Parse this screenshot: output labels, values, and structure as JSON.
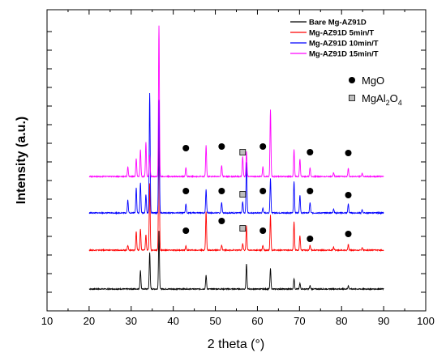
{
  "chart_data": {
    "type": "line",
    "xlabel": "2 theta (°)",
    "ylabel": "Intensity (a.u.)",
    "xlim": [
      10,
      100
    ],
    "x_ticks": [
      10,
      20,
      30,
      40,
      50,
      60,
      70,
      80,
      90,
      100
    ],
    "x_range_data": [
      20,
      90
    ],
    "grid": false,
    "legend_position": "top-right",
    "series": [
      {
        "name": "Bare Mg-AZ91D",
        "color": "#000000",
        "offset": 0,
        "peaks": [
          [
            32.2,
            23
          ],
          [
            34.4,
            45
          ],
          [
            36.6,
            72
          ],
          [
            47.8,
            17
          ],
          [
            57.4,
            31
          ],
          [
            63.1,
            25
          ],
          [
            68.7,
            13
          ],
          [
            70.1,
            7
          ],
          [
            72.5,
            4
          ],
          [
            81.6,
            4
          ]
        ]
      },
      {
        "name": "Mg-AZ91D 5min/T",
        "color": "#ff0000",
        "offset": 48,
        "peaks": [
          [
            29.2,
            6
          ],
          [
            31.2,
            23
          ],
          [
            32.2,
            26
          ],
          [
            33.5,
            19
          ],
          [
            34.4,
            83
          ],
          [
            36.6,
            155
          ],
          [
            43.0,
            5
          ],
          [
            47.8,
            48
          ],
          [
            51.5,
            6
          ],
          [
            56.5,
            8
          ],
          [
            57.4,
            30
          ],
          [
            61.3,
            6
          ],
          [
            63.1,
            43
          ],
          [
            68.7,
            35
          ],
          [
            70.1,
            18
          ],
          [
            72.5,
            6
          ],
          [
            78.1,
            4
          ],
          [
            81.6,
            7
          ],
          [
            84.9,
            3
          ]
        ]
      },
      {
        "name": "Mg-AZ91D 10min/T",
        "color": "#0000ff",
        "offset": 94,
        "peaks": [
          [
            29.2,
            16
          ],
          [
            31.2,
            31
          ],
          [
            32.2,
            37
          ],
          [
            33.5,
            23
          ],
          [
            34.4,
            148
          ],
          [
            36.6,
            140
          ],
          [
            43.0,
            11
          ],
          [
            47.8,
            29
          ],
          [
            51.5,
            13
          ],
          [
            56.5,
            14
          ],
          [
            57.4,
            63
          ],
          [
            61.3,
            6
          ],
          [
            63.1,
            42
          ],
          [
            68.7,
            39
          ],
          [
            70.1,
            22
          ],
          [
            72.5,
            13
          ],
          [
            78.1,
            5
          ],
          [
            81.6,
            11
          ],
          [
            84.9,
            4
          ]
        ]
      },
      {
        "name": "Mg-AZ91D 15min/T",
        "color": "#ff00ff",
        "offset": 139,
        "peaks": [
          [
            29.2,
            12
          ],
          [
            31.2,
            22
          ],
          [
            32.2,
            33
          ],
          [
            33.5,
            42
          ],
          [
            34.4,
            26
          ],
          [
            36.6,
            187
          ],
          [
            43.0,
            11
          ],
          [
            47.8,
            38
          ],
          [
            51.5,
            14
          ],
          [
            56.5,
            25
          ],
          [
            57.4,
            31
          ],
          [
            61.3,
            12
          ],
          [
            63.1,
            82
          ],
          [
            68.7,
            33
          ],
          [
            70.1,
            22
          ],
          [
            72.5,
            11
          ],
          [
            78.1,
            5
          ],
          [
            81.6,
            10
          ],
          [
            84.9,
            4
          ]
        ]
      }
    ],
    "phase_legend": [
      {
        "symbol": "circle",
        "label_main": "MgO",
        "label_html": ""
      },
      {
        "symbol": "square",
        "label_main": "MgAl",
        "sub1": "2",
        "mid": "O",
        "sub2": "4"
      }
    ],
    "annotations": [
      {
        "series": 1,
        "symbol": "circle",
        "x": 43.0,
        "rise": 24
      },
      {
        "series": 1,
        "symbol": "circle",
        "x": 51.5,
        "rise": 36
      },
      {
        "series": 1,
        "symbol": "square",
        "x": 56.5,
        "rise": 27
      },
      {
        "series": 1,
        "symbol": "circle",
        "x": 61.3,
        "rise": 24
      },
      {
        "series": 1,
        "symbol": "circle",
        "x": 72.5,
        "rise": 14
      },
      {
        "series": 1,
        "symbol": "circle",
        "x": 81.6,
        "rise": 20
      },
      {
        "series": 2,
        "symbol": "circle",
        "x": 43.0,
        "rise": 27
      },
      {
        "series": 2,
        "symbol": "circle",
        "x": 51.5,
        "rise": 27
      },
      {
        "series": 2,
        "symbol": "square",
        "x": 56.5,
        "rise": 23
      },
      {
        "series": 2,
        "symbol": "circle",
        "x": 61.3,
        "rise": 27
      },
      {
        "series": 2,
        "symbol": "circle",
        "x": 72.5,
        "rise": 27
      },
      {
        "series": 2,
        "symbol": "circle",
        "x": 81.6,
        "rise": 22
      },
      {
        "series": 3,
        "symbol": "circle",
        "x": 43.0,
        "rise": 35
      },
      {
        "series": 3,
        "symbol": "circle",
        "x": 51.5,
        "rise": 37
      },
      {
        "series": 3,
        "symbol": "square",
        "x": 56.5,
        "rise": 30
      },
      {
        "series": 3,
        "symbol": "circle",
        "x": 61.3,
        "rise": 37
      },
      {
        "series": 3,
        "symbol": "circle",
        "x": 72.5,
        "rise": 30
      },
      {
        "series": 3,
        "symbol": "circle",
        "x": 81.6,
        "rise": 29
      }
    ]
  }
}
